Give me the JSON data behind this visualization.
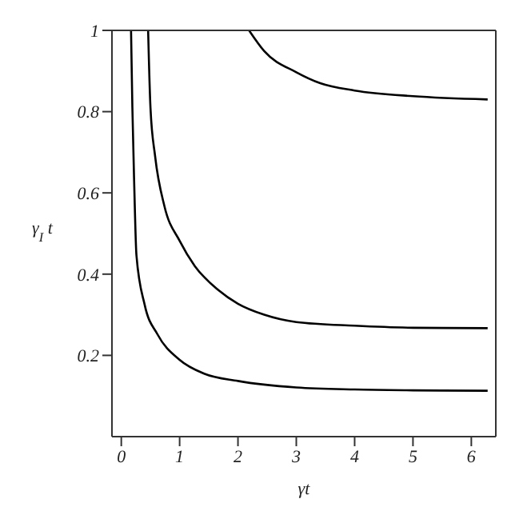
{
  "chart_data": {
    "type": "line",
    "xlabel": "γt",
    "ylabel": "γ$_{I}$ t",
    "xlim": [
      -0.16,
      6.42
    ],
    "ylim": [
      0,
      1
    ],
    "xticks": [
      0,
      1,
      2,
      3,
      4,
      5,
      6
    ],
    "yticks": [
      0.2,
      0.4,
      0.6,
      0.8,
      {
        "value": 1,
        "label": "1"
      }
    ],
    "marker": "none",
    "line_style": "solid",
    "series": [
      {
        "color": "#000000",
        "x": [
          0.167,
          0.19,
          0.22,
          0.26,
          0.4,
          0.62,
          1,
          1.42,
          2,
          3,
          4,
          5,
          6.28
        ],
        "values": [
          1,
          0.81,
          0.63,
          0.446,
          0.325,
          0.252,
          0.189,
          0.155,
          0.137,
          0.121,
          0.116,
          0.114,
          0.113
        ]
      },
      {
        "color": "#000000",
        "x": [
          0.46,
          0.5,
          0.58,
          0.74,
          1,
          1.26,
          1.66,
          2,
          2.45,
          3,
          4,
          5,
          6.28
        ],
        "values": [
          1,
          0.81,
          0.69,
          0.567,
          0.482,
          0.42,
          0.361,
          0.327,
          0.3,
          0.282,
          0.273,
          0.268,
          0.267
        ]
      },
      {
        "color": "#000000",
        "x": [
          2.19,
          2.45,
          3,
          3.41,
          4,
          5,
          6.28
        ],
        "values": [
          1,
          0.949,
          0.897,
          0.87,
          0.852,
          0.838,
          0.83
        ]
      }
    ]
  }
}
